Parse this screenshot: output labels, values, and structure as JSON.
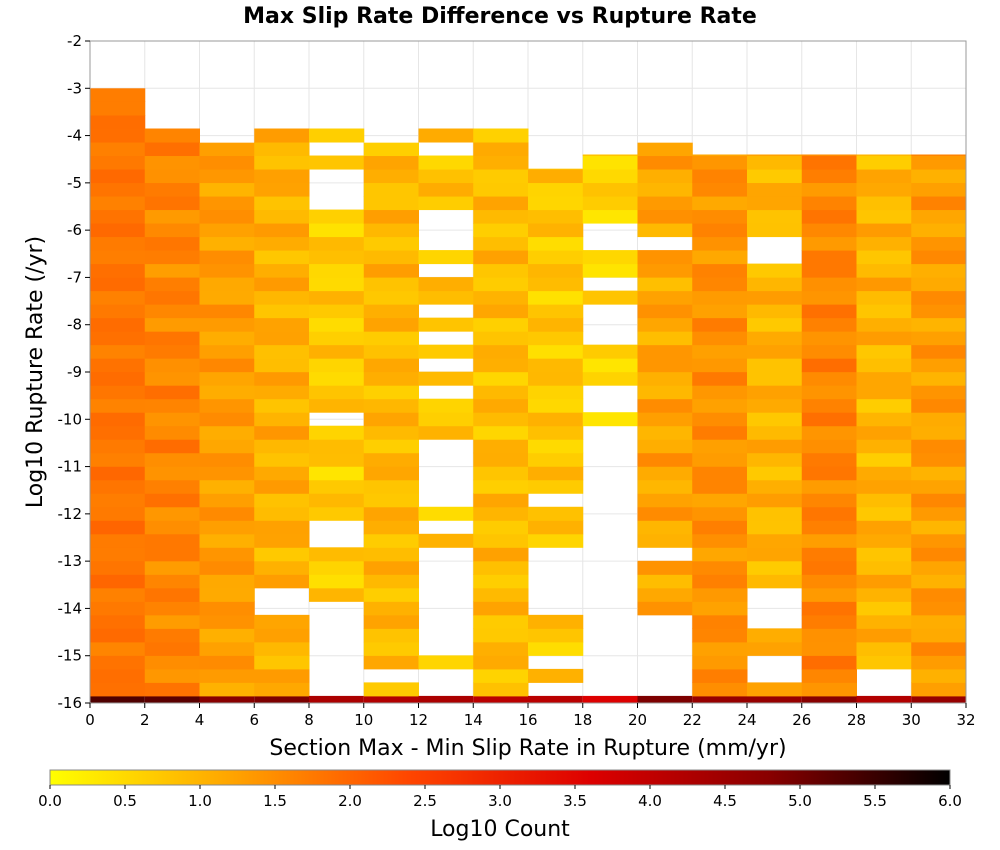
{
  "chart_data": {
    "type": "heatmap",
    "title": "Max Slip Rate Difference vs Rupture Rate",
    "xlabel": "Section Max - Min Slip Rate in Rupture (mm/yr)",
    "ylabel": "Log10 Rupture Rate (/yr)",
    "xlim": [
      0,
      32
    ],
    "ylim": [
      -16,
      -2
    ],
    "x_ticks": [
      0,
      2,
      4,
      6,
      8,
      10,
      12,
      14,
      16,
      18,
      20,
      22,
      24,
      26,
      28,
      30,
      32
    ],
    "y_ticks": [
      -2,
      -3,
      -4,
      -5,
      -6,
      -7,
      -8,
      -9,
      -10,
      -11,
      -12,
      -13,
      -14,
      -15,
      -16
    ],
    "x_bin_width": 2,
    "y_bin_height": 0.2857,
    "grid": true,
    "colorbar": {
      "label": "Log10 Count",
      "min": 0.0,
      "max": 6.0,
      "ticks": [
        "0.0",
        "0.5",
        "1.0",
        "1.5",
        "2.0",
        "2.5",
        "3.0",
        "3.5",
        "4.0",
        "4.5",
        "5.0",
        "5.5",
        "6.0"
      ],
      "colors": [
        "#ffff00",
        "#ffa500",
        "#ff4500",
        "#dd0000",
        "#880000",
        "#000000"
      ]
    },
    "columns": [
      {
        "x_start": 0,
        "top": -3.0,
        "base": 1.8,
        "var": 0.15,
        "gaps": [],
        "bottom_value": 5.3
      },
      {
        "x_start": 2,
        "top": -3.85,
        "base": 1.6,
        "var": 0.25,
        "gaps": [],
        "bottom_value": 5.2
      },
      {
        "x_start": 4,
        "top": -4.15,
        "base": 1.3,
        "var": 0.25,
        "gaps": [],
        "bottom_value": 4.8
      },
      {
        "x_start": 6,
        "top": -3.85,
        "base": 1.05,
        "var": 0.3,
        "gaps": [
          [
            -14.0,
            -13.6
          ]
        ],
        "bottom_value": 4.9
      },
      {
        "x_start": 8,
        "top": -3.85,
        "base": 0.7,
        "var": 0.3,
        "gaps": [
          [
            -4.4,
            -4.15
          ],
          [
            -5.6,
            -4.7
          ],
          [
            -10.0,
            -9.8
          ],
          [
            -12.3,
            -12.1
          ],
          [
            -12.7,
            -12.5
          ],
          [
            -16.0,
            -13.8
          ]
        ],
        "bottom_value": 4.3
      },
      {
        "x_start": 10,
        "top": -4.15,
        "base": 0.95,
        "var": 0.3,
        "gaps": [
          [
            -15.6,
            -15.3
          ]
        ],
        "bottom_value": 4.2
      },
      {
        "x_start": 12,
        "top": -3.85,
        "base": 0.8,
        "var": 0.3,
        "gaps": [
          [
            -4.4,
            -4.15
          ],
          [
            -6.4,
            -5.6
          ],
          [
            -6.9,
            -6.7
          ],
          [
            -7.3,
            -7.2
          ],
          [
            -7.8,
            -7.6
          ],
          [
            -8.4,
            -8.2
          ],
          [
            -9.0,
            -8.8
          ],
          [
            -9.7,
            -9.4
          ],
          [
            -11.8,
            -10.3
          ],
          [
            -12.3,
            -12.1
          ],
          [
            -15.0,
            -12.7
          ],
          [
            -15.9,
            -15.3
          ]
        ],
        "bottom_value": 4.3
      },
      {
        "x_start": 14,
        "top": -3.85,
        "base": 0.9,
        "var": 0.3,
        "gaps": [],
        "bottom_value": 4.1
      },
      {
        "x_start": 16,
        "top": -4.7,
        "base": 0.75,
        "var": 0.3,
        "gaps": [
          [
            -11.8,
            -11.6
          ],
          [
            -14.0,
            -12.7
          ],
          [
            -15.3,
            -15.0
          ],
          [
            -15.9,
            -15.6
          ]
        ],
        "bottom_value": 4.1
      },
      {
        "x_start": 18,
        "top": -4.4,
        "base": 0.6,
        "var": 0.25,
        "gaps": [
          [
            -6.4,
            -5.8
          ],
          [
            -7.3,
            -6.9
          ],
          [
            -8.4,
            -7.6
          ],
          [
            -9.9,
            -9.4
          ],
          [
            -16.0,
            -10.1
          ]
        ],
        "bottom_value": 3.6
      },
      {
        "x_start": 20,
        "top": -4.15,
        "base": 1.2,
        "var": 0.3,
        "gaps": [
          [
            -6.3,
            -6.1
          ],
          [
            -12.9,
            -12.7
          ],
          [
            -13.3,
            -13.2
          ],
          [
            -16.0,
            -14.0
          ]
        ],
        "bottom_value": 4.9
      },
      {
        "x_start": 22,
        "top": -4.4,
        "base": 1.45,
        "var": 0.25,
        "gaps": [],
        "bottom_value": 4.6
      },
      {
        "x_start": 24,
        "top": -4.4,
        "base": 1.0,
        "var": 0.3,
        "gaps": [
          [
            -6.7,
            -6.1
          ],
          [
            -14.5,
            -13.6
          ],
          [
            -15.6,
            -15.0
          ]
        ],
        "bottom_value": 4.6
      },
      {
        "x_start": 26,
        "top": -4.4,
        "base": 1.6,
        "var": 0.25,
        "gaps": [],
        "bottom_value": 4.8
      },
      {
        "x_start": 28,
        "top": -4.4,
        "base": 1.0,
        "var": 0.3,
        "gaps": [
          [
            -16.0,
            -15.3
          ]
        ],
        "bottom_value": 4.2
      },
      {
        "x_start": 30,
        "top": -4.4,
        "base": 1.3,
        "var": 0.3,
        "gaps": [],
        "bottom_value": 4.6
      }
    ]
  }
}
